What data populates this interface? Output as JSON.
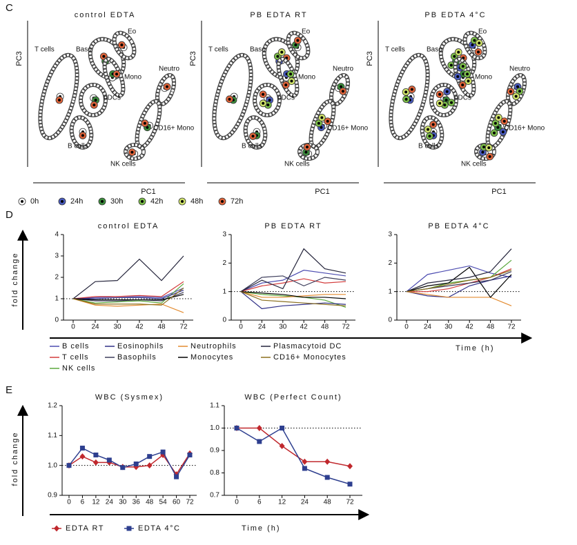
{
  "panel_c": {
    "label": "C",
    "plots": [
      {
        "title": "control EDTA",
        "x_label": "PC1",
        "y_label": "PC3",
        "cell_labels": [
          "T cells",
          "Baso",
          "Eo",
          "Mono",
          "Neutro",
          "pDCs",
          "B cells",
          "CD16+ Mono",
          "NK cells"
        ]
      },
      {
        "title": "PB EDTA RT",
        "x_label": "PC1",
        "y_label": "PC3",
        "cell_labels": [
          "T cells",
          "Baso",
          "Eo",
          "Mono",
          "Neutro",
          "pDCs",
          "B cells",
          "CD16+ Mono",
          "NK cells"
        ]
      },
      {
        "title": "PB EDTA 4°C",
        "x_label": "PC1",
        "y_label": "PC3",
        "cell_labels": [
          "T cells",
          "Baso",
          "Eo",
          "Mono",
          "Neutro",
          "pDCs",
          "B cells",
          "CD16+ Mono",
          "NK cells"
        ]
      }
    ],
    "legend": [
      {
        "name": "0h",
        "color": "#ffffff"
      },
      {
        "name": "24h",
        "color": "#4a5cc0"
      },
      {
        "name": "30h",
        "color": "#3d8f3d"
      },
      {
        "name": "42h",
        "color": "#7cbf4a"
      },
      {
        "name": "48h",
        "color": "#cfe36a"
      },
      {
        "name": "72h",
        "color": "#e0643a"
      }
    ]
  },
  "panel_d": {
    "label": "D",
    "y_label": "fold change",
    "x_label": "Time (h)"
  },
  "panel_e": {
    "label": "E",
    "y_label": "fold change",
    "x_label": "Time (h)"
  },
  "chart_data": [
    {
      "type": "line",
      "title": "control EDTA",
      "categories": [
        "0",
        "24",
        "30",
        "42",
        "48",
        "72"
      ],
      "ylim": [
        0,
        4
      ],
      "yticks": [
        0,
        1,
        2,
        3,
        4
      ],
      "reference_line": 1,
      "series": [
        {
          "name": "B cells",
          "color": "#4b4bb0",
          "values": [
            1,
            1.05,
            1.1,
            1.1,
            1.05,
            1.5
          ]
        },
        {
          "name": "T cells",
          "color": "#d33a3a",
          "values": [
            1,
            1.1,
            1.1,
            1.15,
            1.1,
            1.8
          ]
        },
        {
          "name": "NK cells",
          "color": "#5aa83c",
          "values": [
            1,
            0.8,
            0.85,
            0.9,
            0.8,
            1.7
          ]
        },
        {
          "name": "Eosinophils",
          "color": "#2e2e86",
          "values": [
            1,
            1.0,
            1.05,
            1.05,
            1.0,
            1.4
          ]
        },
        {
          "name": "Basophils",
          "color": "#3c3c5a",
          "values": [
            1,
            0.9,
            0.9,
            0.95,
            0.9,
            1.3
          ]
        },
        {
          "name": "Neutrophils",
          "color": "#e38a2e",
          "values": [
            1,
            0.7,
            0.65,
            0.7,
            0.75,
            0.35
          ]
        },
        {
          "name": "Monocytes",
          "color": "#000000",
          "values": [
            1,
            0.95,
            0.95,
            0.95,
            0.95,
            1.2
          ]
        },
        {
          "name": "Plasmacytoid DC",
          "color": "#23233a",
          "values": [
            1,
            1.8,
            1.85,
            2.85,
            1.85,
            3.0
          ]
        },
        {
          "name": "CD16+ Monocytes",
          "color": "#8a6f1e",
          "values": [
            1,
            0.75,
            0.75,
            0.75,
            0.7,
            1.5
          ]
        }
      ]
    },
    {
      "type": "line",
      "title": "PB EDTA RT",
      "categories": [
        "0",
        "24",
        "30",
        "42",
        "48",
        "72"
      ],
      "ylim": [
        0,
        3
      ],
      "yticks": [
        0,
        1,
        2,
        3
      ],
      "reference_line": 1,
      "series": [
        {
          "name": "B cells",
          "color": "#4b4bb0",
          "values": [
            1,
            1.3,
            1.4,
            1.75,
            1.65,
            1.55
          ]
        },
        {
          "name": "T cells",
          "color": "#d33a3a",
          "values": [
            1,
            1.2,
            1.3,
            1.45,
            1.3,
            1.35
          ]
        },
        {
          "name": "NK cells",
          "color": "#5aa83c",
          "values": [
            1,
            0.9,
            0.85,
            0.8,
            0.7,
            0.45
          ]
        },
        {
          "name": "Eosinophils",
          "color": "#2e2e86",
          "values": [
            1,
            0.4,
            0.5,
            0.55,
            0.6,
            0.55
          ]
        },
        {
          "name": "Basophils",
          "color": "#3c3c5a",
          "values": [
            1,
            1.5,
            1.55,
            1.2,
            1.5,
            1.4
          ]
        },
        {
          "name": "Neutrophils",
          "color": "#e38a2e",
          "values": [
            1,
            0.8,
            0.8,
            0.85,
            0.9,
            0.9
          ]
        },
        {
          "name": "Monocytes",
          "color": "#000000",
          "values": [
            1,
            0.95,
            0.9,
            0.8,
            0.8,
            0.75
          ]
        },
        {
          "name": "Plasmacytoid DC",
          "color": "#23233a",
          "values": [
            1,
            1.4,
            1.1,
            2.5,
            1.8,
            1.65
          ]
        },
        {
          "name": "CD16+ Monocytes",
          "color": "#8a6f1e",
          "values": [
            1,
            0.7,
            0.65,
            0.6,
            0.55,
            0.5
          ]
        }
      ]
    },
    {
      "type": "line",
      "title": "PB EDTA 4°C",
      "categories": [
        "0",
        "24",
        "30",
        "42",
        "48",
        "72"
      ],
      "ylim": [
        0,
        3
      ],
      "yticks": [
        0,
        1,
        2,
        3
      ],
      "reference_line": 1,
      "series": [
        {
          "name": "B cells",
          "color": "#4b4bb0",
          "values": [
            1,
            1.6,
            1.75,
            1.9,
            1.65,
            1.5
          ]
        },
        {
          "name": "T cells",
          "color": "#d33a3a",
          "values": [
            1,
            1.0,
            1.1,
            1.3,
            1.5,
            1.8
          ]
        },
        {
          "name": "NK cells",
          "color": "#5aa83c",
          "values": [
            1,
            1.1,
            1.3,
            1.4,
            1.5,
            2.1
          ]
        },
        {
          "name": "Eosinophils",
          "color": "#2e2e86",
          "values": [
            1,
            0.85,
            0.8,
            1.2,
            1.4,
            1.55
          ]
        },
        {
          "name": "Basophils",
          "color": "#3c3c5a",
          "values": [
            1,
            1.1,
            1.2,
            1.3,
            1.4,
            1.7
          ]
        },
        {
          "name": "Neutrophils",
          "color": "#e38a2e",
          "values": [
            1,
            0.9,
            0.8,
            0.8,
            0.8,
            0.5
          ]
        },
        {
          "name": "Monocytes",
          "color": "#000000",
          "values": [
            1,
            1.2,
            1.3,
            1.85,
            0.8,
            1.6
          ]
        },
        {
          "name": "Plasmacytoid DC",
          "color": "#23233a",
          "values": [
            1,
            1.3,
            1.4,
            1.5,
            1.7,
            2.5
          ]
        },
        {
          "name": "CD16+ Monocytes",
          "color": "#8a6f1e",
          "values": [
            1,
            1.1,
            1.25,
            1.4,
            1.5,
            1.75
          ]
        }
      ]
    },
    {
      "type": "line",
      "title": "WBC (Sysmex)",
      "categories": [
        "0",
        "6",
        "12",
        "24",
        "30",
        "36",
        "48",
        "54",
        "60",
        "72"
      ],
      "ylim": [
        0.9,
        1.2
      ],
      "yticks": [
        0.9,
        {
          "value": 1,
          "label": "1.0"
        },
        1.1,
        1.2
      ],
      "reference_line": 1,
      "series": [
        {
          "name": "EDTA RT",
          "color": "#c0282d",
          "marker": "diamond",
          "values": [
            1.0,
            1.03,
            1.01,
            1.01,
            0.995,
            0.995,
            1.0,
            1.035,
            0.97,
            1.04
          ]
        },
        {
          "name": "EDTA 4°C",
          "color": "#2e3f8f",
          "marker": "square",
          "values": [
            1.0,
            1.058,
            1.035,
            1.018,
            0.993,
            1.005,
            1.03,
            1.045,
            0.962,
            1.035
          ]
        }
      ]
    },
    {
      "type": "line",
      "title": "WBC (Perfect Count)",
      "categories": [
        "0",
        "6",
        "12",
        "24",
        "48",
        "72"
      ],
      "ylim": [
        0.7,
        1.1
      ],
      "yticks": [
        0.7,
        0.8,
        0.9,
        {
          "value": 1,
          "label": "1.0"
        },
        1.1
      ],
      "reference_line": 1,
      "series": [
        {
          "name": "EDTA RT",
          "color": "#c0282d",
          "marker": "diamond",
          "values": [
            1,
            1,
            0.92,
            0.85,
            0.85,
            0.83
          ]
        },
        {
          "name": "EDTA 4°C",
          "color": "#2e3f8f",
          "marker": "square",
          "values": [
            1,
            0.94,
            1.0,
            0.82,
            0.78,
            0.75
          ]
        }
      ]
    }
  ]
}
